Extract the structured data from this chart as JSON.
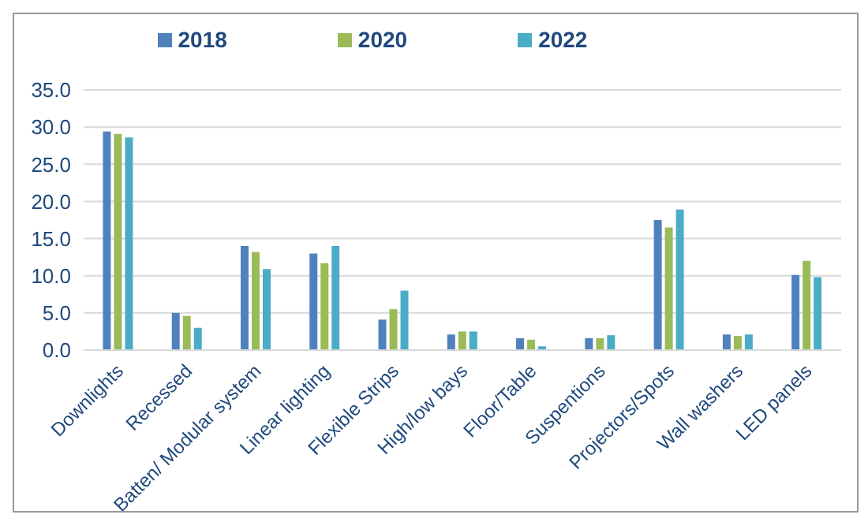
{
  "chart_data": {
    "type": "bar",
    "categories": [
      "Downlights",
      "Recessed",
      "Batten/ Modular system",
      "Linear lighting",
      "Flexible Strips",
      "High/low bays",
      "Floor/Table",
      "Suspentions",
      "Projectors/Spots",
      "Wall washers",
      "LED panels"
    ],
    "series": [
      {
        "name": "2018",
        "color": "#4f81bd",
        "values": [
          29.4,
          5.0,
          14.0,
          13.0,
          4.1,
          2.1,
          1.6,
          1.6,
          17.5,
          2.1,
          10.1
        ]
      },
      {
        "name": "2020",
        "color": "#9bbb59",
        "values": [
          29.1,
          4.6,
          13.2,
          11.7,
          5.5,
          2.5,
          1.4,
          1.6,
          16.5,
          1.9,
          12.0
        ]
      },
      {
        "name": "2022",
        "color": "#4bacc6",
        "values": [
          28.6,
          3.0,
          10.9,
          14.0,
          8.0,
          2.5,
          0.5,
          2.0,
          18.9,
          2.1,
          9.8
        ]
      }
    ],
    "ylim": [
      0,
      35
    ],
    "yticks": [
      {
        "value": 0,
        "label": "0.0"
      },
      {
        "value": 5,
        "label": "5.0"
      },
      {
        "value": 10,
        "label": "10.0"
      },
      {
        "value": 15,
        "label": "15.0"
      },
      {
        "value": 20,
        "label": "20.0"
      },
      {
        "value": 25,
        "label": "25.0"
      },
      {
        "value": 30,
        "label": "30.0"
      },
      {
        "value": 35,
        "label": "35.0"
      }
    ],
    "grid": "y",
    "legend": "top"
  }
}
